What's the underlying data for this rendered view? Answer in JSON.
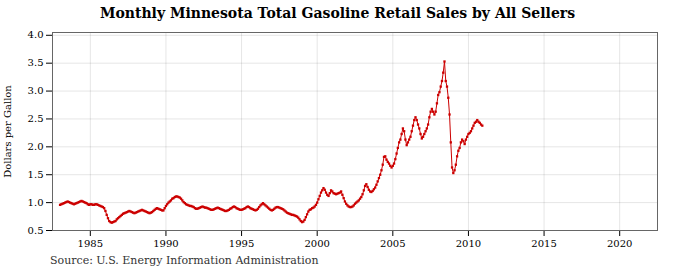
{
  "chart_data": {
    "type": "line",
    "title": "Monthly Minnesota Total Gasoline Retail Sales by All Sellers",
    "ylabel": "Dollars per Gallon",
    "annotations": [
      "Source: U.S. Energy Information Administration"
    ],
    "color": "#cc0000",
    "marker": "square",
    "grid": true,
    "xlim": [
      1982.5,
      2022.5
    ],
    "ylim": [
      0.5,
      4.05
    ],
    "xticks": [
      1985,
      1990,
      1995,
      2000,
      2005,
      2010,
      2015,
      2020
    ],
    "yticks": [
      0.5,
      {
        "value": 1.0,
        "label": "1.0"
      },
      1.5,
      {
        "value": 2.0,
        "label": "2.0"
      },
      2.5,
      {
        "value": 3.0,
        "label": "3.0"
      },
      3.5,
      {
        "value": 4.0,
        "label": "4.0"
      }
    ],
    "x": [
      1983.0,
      1983.083,
      1983.167,
      1983.25,
      1983.333,
      1983.417,
      1983.5,
      1983.583,
      1983.667,
      1983.75,
      1983.833,
      1983.917,
      1984.0,
      1984.083,
      1984.167,
      1984.25,
      1984.333,
      1984.417,
      1984.5,
      1984.583,
      1984.667,
      1984.75,
      1984.833,
      1984.917,
      1985.0,
      1985.083,
      1985.167,
      1985.25,
      1985.333,
      1985.417,
      1985.5,
      1985.583,
      1985.667,
      1985.75,
      1985.833,
      1985.917,
      1986.0,
      1986.083,
      1986.167,
      1986.25,
      1986.333,
      1986.417,
      1986.5,
      1986.583,
      1986.667,
      1986.75,
      1986.833,
      1986.917,
      1987.0,
      1987.083,
      1987.167,
      1987.25,
      1987.333,
      1987.417,
      1987.5,
      1987.583,
      1987.667,
      1987.75,
      1987.833,
      1987.917,
      1988.0,
      1988.083,
      1988.167,
      1988.25,
      1988.333,
      1988.417,
      1988.5,
      1988.583,
      1988.667,
      1988.75,
      1988.833,
      1988.917,
      1989.0,
      1989.083,
      1989.167,
      1989.25,
      1989.333,
      1989.417,
      1989.5,
      1989.583,
      1989.667,
      1989.75,
      1989.833,
      1989.917,
      1990.0,
      1990.083,
      1990.167,
      1990.25,
      1990.333,
      1990.417,
      1990.5,
      1990.583,
      1990.667,
      1990.75,
      1990.833,
      1990.917,
      1991.0,
      1991.083,
      1991.167,
      1991.25,
      1991.333,
      1991.417,
      1991.5,
      1991.583,
      1991.667,
      1991.75,
      1991.833,
      1991.917,
      1992.0,
      1992.083,
      1992.167,
      1992.25,
      1992.333,
      1992.417,
      1992.5,
      1992.583,
      1992.667,
      1992.75,
      1992.833,
      1992.917,
      1993.0,
      1993.083,
      1993.167,
      1993.25,
      1993.333,
      1993.417,
      1993.5,
      1993.583,
      1993.667,
      1993.75,
      1993.833,
      1993.917,
      1994.0,
      1994.083,
      1994.167,
      1994.25,
      1994.333,
      1994.417,
      1994.5,
      1994.583,
      1994.667,
      1994.75,
      1994.833,
      1994.917,
      1995.0,
      1995.083,
      1995.167,
      1995.25,
      1995.333,
      1995.417,
      1995.5,
      1995.583,
      1995.667,
      1995.75,
      1995.833,
      1995.917,
      1996.0,
      1996.083,
      1996.167,
      1996.25,
      1996.333,
      1996.417,
      1996.5,
      1996.583,
      1996.667,
      1996.75,
      1996.833,
      1996.917,
      1997.0,
      1997.083,
      1997.167,
      1997.25,
      1997.333,
      1997.417,
      1997.5,
      1997.583,
      1997.667,
      1997.75,
      1997.833,
      1997.917,
      1998.0,
      1998.083,
      1998.167,
      1998.25,
      1998.333,
      1998.417,
      1998.5,
      1998.583,
      1998.667,
      1998.75,
      1998.833,
      1998.917,
      1999.0,
      1999.083,
      1999.167,
      1999.25,
      1999.333,
      1999.417,
      1999.5,
      1999.583,
      1999.667,
      1999.75,
      1999.833,
      1999.917,
      2000.0,
      2000.083,
      2000.167,
      2000.25,
      2000.333,
      2000.417,
      2000.5,
      2000.583,
      2000.667,
      2000.75,
      2000.833,
      2000.917,
      2001.0,
      2001.083,
      2001.167,
      2001.25,
      2001.333,
      2001.417,
      2001.5,
      2001.583,
      2001.667,
      2001.75,
      2001.833,
      2001.917,
      2002.0,
      2002.083,
      2002.167,
      2002.25,
      2002.333,
      2002.417,
      2002.5,
      2002.583,
      2002.667,
      2002.75,
      2002.833,
      2002.917,
      2003.0,
      2003.083,
      2003.167,
      2003.25,
      2003.333,
      2003.417,
      2003.5,
      2003.583,
      2003.667,
      2003.75,
      2003.833,
      2003.917,
      2004.0,
      2004.083,
      2004.167,
      2004.25,
      2004.333,
      2004.417,
      2004.5,
      2004.583,
      2004.667,
      2004.75,
      2004.833,
      2004.917,
      2005.0,
      2005.083,
      2005.167,
      2005.25,
      2005.333,
      2005.417,
      2005.5,
      2005.583,
      2005.667,
      2005.75,
      2005.833,
      2005.917,
      2006.0,
      2006.083,
      2006.167,
      2006.25,
      2006.333,
      2006.417,
      2006.5,
      2006.583,
      2006.667,
      2006.75,
      2006.833,
      2006.917,
      2007.0,
      2007.083,
      2007.167,
      2007.25,
      2007.333,
      2007.417,
      2007.5,
      2007.583,
      2007.667,
      2007.75,
      2007.833,
      2007.917,
      2008.0,
      2008.083,
      2008.167,
      2008.25,
      2008.333,
      2008.417,
      2008.5,
      2008.583,
      2008.667,
      2008.75,
      2008.833,
      2008.917,
      2009.0,
      2009.083,
      2009.167,
      2009.25,
      2009.333,
      2009.417,
      2009.5,
      2009.583,
      2009.667,
      2009.75,
      2009.833,
      2009.917,
      2010.0,
      2010.083,
      2010.167,
      2010.25,
      2010.333,
      2010.417,
      2010.5,
      2010.583,
      2010.667,
      2010.75,
      2010.833,
      2010.917
    ],
    "values": [
      0.96,
      0.97,
      0.98,
      0.99,
      1.0,
      1.01,
      1.02,
      1.01,
      1.0,
      0.99,
      0.98,
      0.97,
      0.98,
      0.99,
      1.0,
      1.01,
      1.02,
      1.03,
      1.02,
      1.01,
      1.0,
      0.99,
      0.97,
      0.96,
      0.97,
      0.97,
      0.96,
      0.96,
      0.97,
      0.97,
      0.96,
      0.95,
      0.94,
      0.93,
      0.92,
      0.9,
      0.85,
      0.78,
      0.72,
      0.67,
      0.65,
      0.64,
      0.65,
      0.66,
      0.67,
      0.7,
      0.72,
      0.74,
      0.76,
      0.78,
      0.8,
      0.81,
      0.82,
      0.83,
      0.84,
      0.85,
      0.84,
      0.83,
      0.82,
      0.81,
      0.82,
      0.83,
      0.84,
      0.85,
      0.86,
      0.87,
      0.86,
      0.85,
      0.84,
      0.83,
      0.82,
      0.81,
      0.82,
      0.83,
      0.85,
      0.87,
      0.89,
      0.9,
      0.89,
      0.88,
      0.87,
      0.86,
      0.86,
      0.9,
      0.94,
      0.97,
      1.0,
      1.02,
      1.04,
      1.07,
      1.08,
      1.1,
      1.11,
      1.11,
      1.1,
      1.09,
      1.07,
      1.04,
      1.01,
      0.99,
      0.97,
      0.96,
      0.95,
      0.94,
      0.94,
      0.93,
      0.92,
      0.9,
      0.89,
      0.89,
      0.9,
      0.91,
      0.92,
      0.93,
      0.92,
      0.91,
      0.91,
      0.9,
      0.89,
      0.88,
      0.87,
      0.87,
      0.88,
      0.89,
      0.9,
      0.91,
      0.9,
      0.89,
      0.88,
      0.87,
      0.86,
      0.85,
      0.85,
      0.86,
      0.87,
      0.89,
      0.9,
      0.92,
      0.93,
      0.92,
      0.9,
      0.89,
      0.88,
      0.87,
      0.87,
      0.88,
      0.89,
      0.9,
      0.92,
      0.93,
      0.92,
      0.9,
      0.89,
      0.88,
      0.87,
      0.86,
      0.87,
      0.89,
      0.92,
      0.95,
      0.97,
      0.99,
      0.97,
      0.95,
      0.93,
      0.91,
      0.89,
      0.87,
      0.86,
      0.87,
      0.89,
      0.91,
      0.92,
      0.92,
      0.91,
      0.9,
      0.89,
      0.88,
      0.86,
      0.84,
      0.82,
      0.81,
      0.8,
      0.79,
      0.78,
      0.78,
      0.77,
      0.76,
      0.75,
      0.73,
      0.7,
      0.67,
      0.65,
      0.66,
      0.69,
      0.74,
      0.79,
      0.84,
      0.87,
      0.88,
      0.9,
      0.91,
      0.93,
      0.96,
      1.0,
      1.06,
      1.12,
      1.18,
      1.22,
      1.26,
      1.23,
      1.18,
      1.14,
      1.12,
      1.17,
      1.22,
      1.2,
      1.17,
      1.16,
      1.15,
      1.16,
      1.17,
      1.18,
      1.2,
      1.14,
      1.08,
      1.02,
      0.98,
      0.95,
      0.93,
      0.92,
      0.92,
      0.93,
      0.95,
      0.98,
      1.0,
      1.02,
      1.04,
      1.07,
      1.1,
      1.15,
      1.22,
      1.3,
      1.33,
      1.28,
      1.23,
      1.2,
      1.19,
      1.21,
      1.24,
      1.27,
      1.32,
      1.38,
      1.44,
      1.5,
      1.58,
      1.68,
      1.82,
      1.83,
      1.77,
      1.73,
      1.7,
      1.66,
      1.63,
      1.66,
      1.7,
      1.78,
      1.88,
      1.98,
      2.08,
      2.13,
      2.23,
      2.33,
      2.28,
      2.13,
      2.03,
      2.08,
      2.13,
      2.18,
      2.28,
      2.38,
      2.48,
      2.53,
      2.48,
      2.4,
      2.33,
      2.23,
      2.15,
      2.18,
      2.23,
      2.28,
      2.33,
      2.4,
      2.53,
      2.63,
      2.68,
      2.63,
      2.58,
      2.63,
      2.78,
      2.93,
      2.98,
      3.08,
      3.18,
      3.33,
      3.53,
      3.18,
      3.08,
      2.88,
      2.58,
      2.08,
      1.63,
      1.53,
      1.58,
      1.68,
      1.83,
      1.93,
      1.98,
      2.08,
      2.13,
      2.1,
      2.05,
      2.13,
      2.18,
      2.23,
      2.25,
      2.28,
      2.33,
      2.38,
      2.43,
      2.45,
      2.48,
      2.45,
      2.43,
      2.4,
      2.38
    ]
  }
}
